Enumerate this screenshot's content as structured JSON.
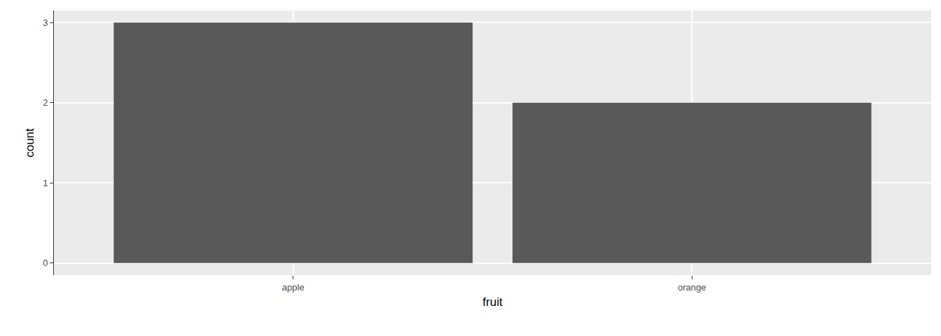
{
  "chart_data": {
    "type": "bar",
    "x_label": "fruit",
    "y_label": "count",
    "categories": [
      "apple",
      "orange"
    ],
    "values": [
      3,
      2
    ],
    "color": "#595959",
    "ylim": [
      -0.15,
      3.15
    ],
    "yticks": [
      0,
      1,
      2,
      3
    ],
    "grid": true
  }
}
